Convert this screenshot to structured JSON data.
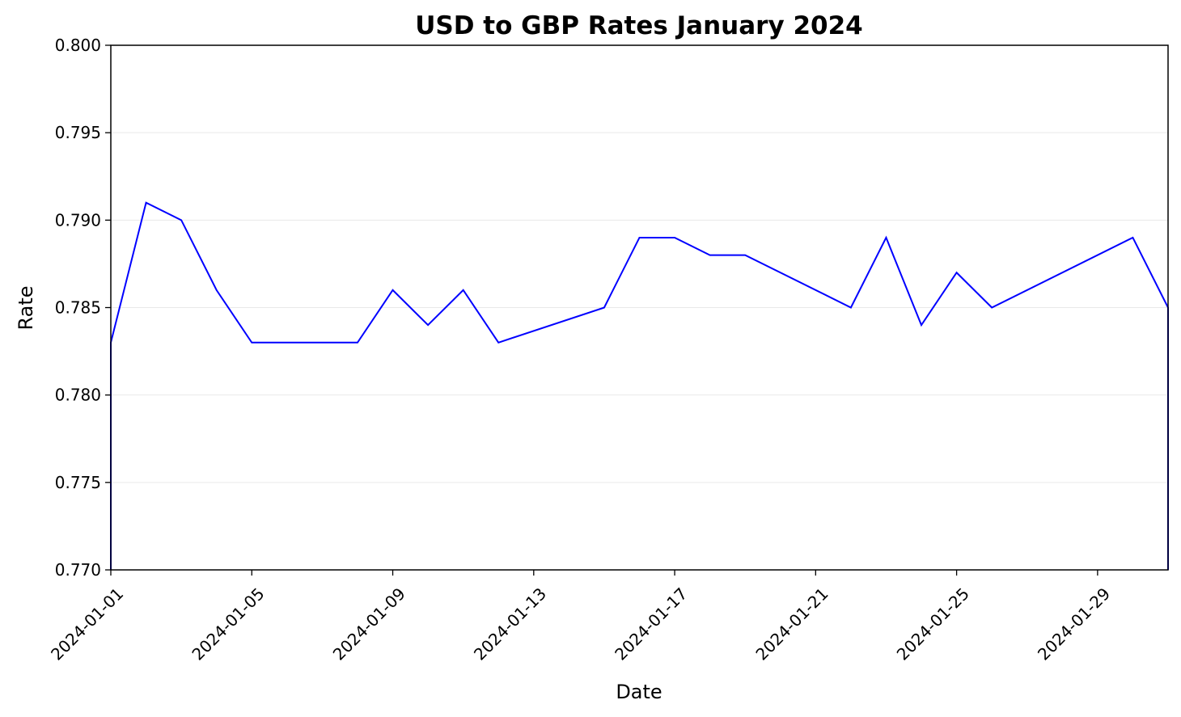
{
  "chart_data": {
    "type": "line",
    "title": "USD to GBP Rates January 2024",
    "xlabel": "Date",
    "ylabel": "Rate",
    "x_tick_labels": [
      "2024-01-01",
      "2024-01-05",
      "2024-01-09",
      "2024-01-13",
      "2024-01-17",
      "2024-01-21",
      "2024-01-25",
      "2024-01-29"
    ],
    "y_tick_labels": [
      "0.770",
      "0.775",
      "0.780",
      "0.785",
      "0.790",
      "0.795",
      "0.800"
    ],
    "xlim": [
      "2024-01-01",
      "2024-01-31"
    ],
    "ylim": [
      0.77,
      0.8
    ],
    "grid": "horizontal",
    "line_color": "#0000ff",
    "x": [
      "2024-01-01",
      "2024-01-02",
      "2024-01-03",
      "2024-01-04",
      "2024-01-05",
      "2024-01-08",
      "2024-01-09",
      "2024-01-10",
      "2024-01-11",
      "2024-01-12",
      "2024-01-15",
      "2024-01-16",
      "2024-01-17",
      "2024-01-18",
      "2024-01-19",
      "2024-01-22",
      "2024-01-23",
      "2024-01-24",
      "2024-01-25",
      "2024-01-26",
      "2024-01-30",
      "2024-01-31"
    ],
    "values": [
      0.783,
      0.791,
      0.79,
      0.786,
      0.783,
      0.783,
      0.786,
      0.784,
      0.786,
      0.783,
      0.785,
      0.789,
      0.789,
      0.788,
      0.788,
      0.785,
      0.789,
      0.784,
      0.787,
      0.785,
      0.789,
      0.785
    ]
  }
}
